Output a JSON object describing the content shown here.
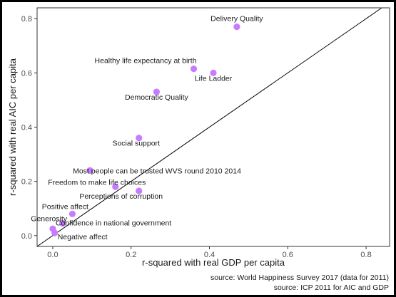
{
  "chart_data": {
    "type": "scatter",
    "title": "",
    "xlabel": "r-squared with real GDP per capita",
    "ylabel": "r-squared with real AIC per capita",
    "xlim": [
      -0.04,
      0.86
    ],
    "ylim": [
      -0.04,
      0.84
    ],
    "xticks": [
      0.0,
      0.2,
      0.4,
      0.6,
      0.8
    ],
    "yticks": [
      0.0,
      0.2,
      0.4,
      0.6,
      0.8
    ],
    "tick_labels_x": [
      "0.0",
      "0.2",
      "0.4",
      "0.6",
      "0.8"
    ],
    "tick_labels_y": [
      "0.0",
      "0.2",
      "0.4",
      "0.6",
      "0.8"
    ],
    "grid": false,
    "reference_line": "y = x",
    "point_color": "#c77cff",
    "points": [
      {
        "label": "Delivery Quality",
        "x": 0.47,
        "y": 0.77,
        "anchor": "middle"
      },
      {
        "label": "Healthy life expectancy at birth",
        "x": 0.36,
        "y": 0.615,
        "anchor": "end"
      },
      {
        "label": "Life Ladder",
        "x": 0.41,
        "y": 0.6,
        "anchor": "middle"
      },
      {
        "label": "Democratic Quality",
        "x": 0.265,
        "y": 0.53,
        "anchor": "middle"
      },
      {
        "label": "Social support",
        "x": 0.22,
        "y": 0.36,
        "anchor": "middle"
      },
      {
        "label": "Most people can be trusted  WVS round 2010 2014",
        "x": 0.095,
        "y": 0.24,
        "anchor": "start"
      },
      {
        "label": "Freedom to make life choices",
        "x": 0.16,
        "y": 0.18,
        "anchor": "middle"
      },
      {
        "label": "Perceptions of corruption",
        "x": 0.22,
        "y": 0.165,
        "anchor": "middle"
      },
      {
        "label": "Positive affect",
        "x": 0.05,
        "y": 0.08,
        "anchor": "middle"
      },
      {
        "label": "Generosity",
        "x": 0.025,
        "y": 0.045,
        "anchor": "middle"
      },
      {
        "label": "Confidence in national government",
        "x": 0.0,
        "y": 0.025,
        "anchor": "start"
      },
      {
        "label": "Negative affect",
        "x": 0.005,
        "y": 0.01,
        "anchor": "start"
      }
    ]
  },
  "notes": {
    "source_1": "source: World Happiness Survey 2017 (data for 2011)",
    "source_2": "source: ICP 2011 for AIC and GDP"
  }
}
